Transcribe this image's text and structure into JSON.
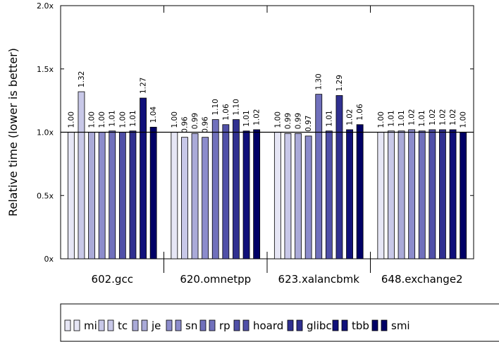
{
  "chart_data": {
    "type": "bar",
    "ylabel": "Relative time (lower is better)",
    "ylim": [
      0,
      2.0
    ],
    "yticks": [
      {
        "value": 0,
        "label": "0x"
      },
      {
        "value": 0.5,
        "label": "0.5x"
      },
      {
        "value": 1.0,
        "label": "1.0x"
      },
      {
        "value": 1.5,
        "label": "1.5x"
      },
      {
        "value": 2.0,
        "label": "2.0x"
      }
    ],
    "reference_line": 1.0,
    "legend_position": "bottom",
    "categories": [
      "602.gcc",
      "620.omnetpp",
      "623.xalancbmk",
      "648.exchange2"
    ],
    "series": [
      {
        "name": "mi",
        "color": "#e6e6f5",
        "values": [
          1.0,
          1.0,
          1.0,
          1.0
        ],
        "labels": [
          "1.00",
          "1.00",
          "1.00",
          "1.00"
        ]
      },
      {
        "name": "tc",
        "color": "#c8c8e8",
        "values": [
          1.32,
          0.96,
          0.99,
          1.01
        ],
        "labels": [
          "1.32",
          "0.96",
          "0.99",
          "1.01"
        ]
      },
      {
        "name": "je",
        "color": "#aaaad8",
        "values": [
          1.0,
          0.99,
          0.99,
          1.01
        ],
        "labels": [
          "1.00",
          "0.99",
          "0.99",
          "1.01"
        ]
      },
      {
        "name": "sn",
        "color": "#8c8ccc",
        "values": [
          1.0,
          0.96,
          0.97,
          1.02
        ],
        "labels": [
          "1.00",
          "0.96",
          "0.97",
          "1.02"
        ]
      },
      {
        "name": "rp",
        "color": "#7070bc",
        "values": [
          1.01,
          1.1,
          1.3,
          1.01
        ],
        "labels": [
          "1.01",
          "1.10",
          "1.30",
          "1.01"
        ]
      },
      {
        "name": "hoard",
        "color": "#5050a8",
        "values": [
          1.0,
          1.06,
          1.01,
          1.02
        ],
        "labels": [
          "1.00",
          "1.06",
          "1.01",
          "1.02"
        ]
      },
      {
        "name": "glibc",
        "color": "#303090",
        "values": [
          1.01,
          1.1,
          1.29,
          1.02
        ],
        "labels": [
          "1.01",
          "1.10",
          "1.29",
          "1.02"
        ]
      },
      {
        "name": "tbb",
        "color": "#10107a",
        "values": [
          1.27,
          1.01,
          1.02,
          1.02
        ],
        "labels": [
          "1.27",
          "1.01",
          "1.02",
          "1.02"
        ]
      },
      {
        "name": "smi",
        "color": "#000066",
        "values": [
          1.04,
          1.02,
          1.06,
          1.0
        ],
        "labels": [
          "1.04",
          "1.02",
          "1.06",
          "1.00"
        ]
      }
    ]
  }
}
